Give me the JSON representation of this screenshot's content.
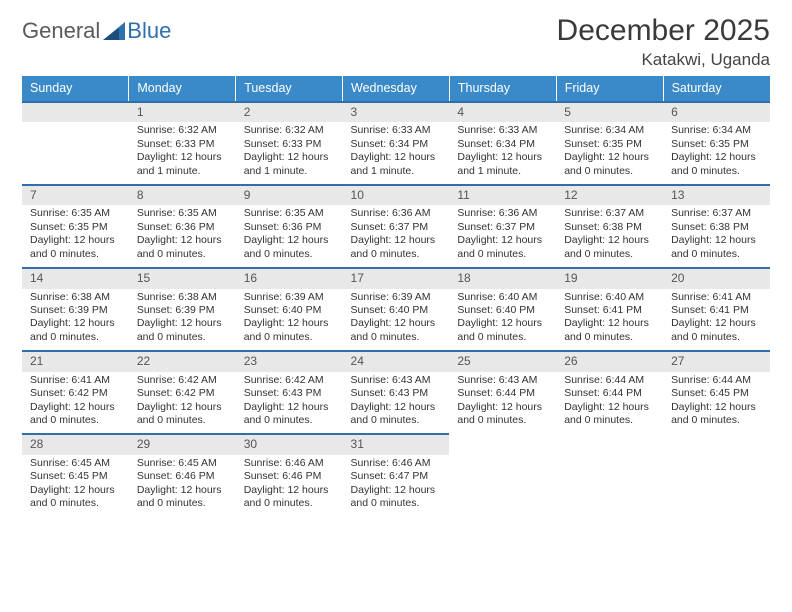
{
  "logo": {
    "part1": "General",
    "part2": "Blue"
  },
  "title": "December 2025",
  "location": "Katakwi, Uganda",
  "weekday_header_bg": "#3a8ac9",
  "accent_line": "#2f6fab",
  "daynum_bg": "#e8e8e8",
  "weekdays": [
    "Sunday",
    "Monday",
    "Tuesday",
    "Wednesday",
    "Thursday",
    "Friday",
    "Saturday"
  ],
  "weeks": [
    [
      null,
      {
        "n": "1",
        "sr": "Sunrise: 6:32 AM",
        "ss": "Sunset: 6:33 PM",
        "d1": "Daylight: 12 hours",
        "d2": "and 1 minute."
      },
      {
        "n": "2",
        "sr": "Sunrise: 6:32 AM",
        "ss": "Sunset: 6:33 PM",
        "d1": "Daylight: 12 hours",
        "d2": "and 1 minute."
      },
      {
        "n": "3",
        "sr": "Sunrise: 6:33 AM",
        "ss": "Sunset: 6:34 PM",
        "d1": "Daylight: 12 hours",
        "d2": "and 1 minute."
      },
      {
        "n": "4",
        "sr": "Sunrise: 6:33 AM",
        "ss": "Sunset: 6:34 PM",
        "d1": "Daylight: 12 hours",
        "d2": "and 1 minute."
      },
      {
        "n": "5",
        "sr": "Sunrise: 6:34 AM",
        "ss": "Sunset: 6:35 PM",
        "d1": "Daylight: 12 hours",
        "d2": "and 0 minutes."
      },
      {
        "n": "6",
        "sr": "Sunrise: 6:34 AM",
        "ss": "Sunset: 6:35 PM",
        "d1": "Daylight: 12 hours",
        "d2": "and 0 minutes."
      }
    ],
    [
      {
        "n": "7",
        "sr": "Sunrise: 6:35 AM",
        "ss": "Sunset: 6:35 PM",
        "d1": "Daylight: 12 hours",
        "d2": "and 0 minutes."
      },
      {
        "n": "8",
        "sr": "Sunrise: 6:35 AM",
        "ss": "Sunset: 6:36 PM",
        "d1": "Daylight: 12 hours",
        "d2": "and 0 minutes."
      },
      {
        "n": "9",
        "sr": "Sunrise: 6:35 AM",
        "ss": "Sunset: 6:36 PM",
        "d1": "Daylight: 12 hours",
        "d2": "and 0 minutes."
      },
      {
        "n": "10",
        "sr": "Sunrise: 6:36 AM",
        "ss": "Sunset: 6:37 PM",
        "d1": "Daylight: 12 hours",
        "d2": "and 0 minutes."
      },
      {
        "n": "11",
        "sr": "Sunrise: 6:36 AM",
        "ss": "Sunset: 6:37 PM",
        "d1": "Daylight: 12 hours",
        "d2": "and 0 minutes."
      },
      {
        "n": "12",
        "sr": "Sunrise: 6:37 AM",
        "ss": "Sunset: 6:38 PM",
        "d1": "Daylight: 12 hours",
        "d2": "and 0 minutes."
      },
      {
        "n": "13",
        "sr": "Sunrise: 6:37 AM",
        "ss": "Sunset: 6:38 PM",
        "d1": "Daylight: 12 hours",
        "d2": "and 0 minutes."
      }
    ],
    [
      {
        "n": "14",
        "sr": "Sunrise: 6:38 AM",
        "ss": "Sunset: 6:39 PM",
        "d1": "Daylight: 12 hours",
        "d2": "and 0 minutes."
      },
      {
        "n": "15",
        "sr": "Sunrise: 6:38 AM",
        "ss": "Sunset: 6:39 PM",
        "d1": "Daylight: 12 hours",
        "d2": "and 0 minutes."
      },
      {
        "n": "16",
        "sr": "Sunrise: 6:39 AM",
        "ss": "Sunset: 6:40 PM",
        "d1": "Daylight: 12 hours",
        "d2": "and 0 minutes."
      },
      {
        "n": "17",
        "sr": "Sunrise: 6:39 AM",
        "ss": "Sunset: 6:40 PM",
        "d1": "Daylight: 12 hours",
        "d2": "and 0 minutes."
      },
      {
        "n": "18",
        "sr": "Sunrise: 6:40 AM",
        "ss": "Sunset: 6:40 PM",
        "d1": "Daylight: 12 hours",
        "d2": "and 0 minutes."
      },
      {
        "n": "19",
        "sr": "Sunrise: 6:40 AM",
        "ss": "Sunset: 6:41 PM",
        "d1": "Daylight: 12 hours",
        "d2": "and 0 minutes."
      },
      {
        "n": "20",
        "sr": "Sunrise: 6:41 AM",
        "ss": "Sunset: 6:41 PM",
        "d1": "Daylight: 12 hours",
        "d2": "and 0 minutes."
      }
    ],
    [
      {
        "n": "21",
        "sr": "Sunrise: 6:41 AM",
        "ss": "Sunset: 6:42 PM",
        "d1": "Daylight: 12 hours",
        "d2": "and 0 minutes."
      },
      {
        "n": "22",
        "sr": "Sunrise: 6:42 AM",
        "ss": "Sunset: 6:42 PM",
        "d1": "Daylight: 12 hours",
        "d2": "and 0 minutes."
      },
      {
        "n": "23",
        "sr": "Sunrise: 6:42 AM",
        "ss": "Sunset: 6:43 PM",
        "d1": "Daylight: 12 hours",
        "d2": "and 0 minutes."
      },
      {
        "n": "24",
        "sr": "Sunrise: 6:43 AM",
        "ss": "Sunset: 6:43 PM",
        "d1": "Daylight: 12 hours",
        "d2": "and 0 minutes."
      },
      {
        "n": "25",
        "sr": "Sunrise: 6:43 AM",
        "ss": "Sunset: 6:44 PM",
        "d1": "Daylight: 12 hours",
        "d2": "and 0 minutes."
      },
      {
        "n": "26",
        "sr": "Sunrise: 6:44 AM",
        "ss": "Sunset: 6:44 PM",
        "d1": "Daylight: 12 hours",
        "d2": "and 0 minutes."
      },
      {
        "n": "27",
        "sr": "Sunrise: 6:44 AM",
        "ss": "Sunset: 6:45 PM",
        "d1": "Daylight: 12 hours",
        "d2": "and 0 minutes."
      }
    ],
    [
      {
        "n": "28",
        "sr": "Sunrise: 6:45 AM",
        "ss": "Sunset: 6:45 PM",
        "d1": "Daylight: 12 hours",
        "d2": "and 0 minutes."
      },
      {
        "n": "29",
        "sr": "Sunrise: 6:45 AM",
        "ss": "Sunset: 6:46 PM",
        "d1": "Daylight: 12 hours",
        "d2": "and 0 minutes."
      },
      {
        "n": "30",
        "sr": "Sunrise: 6:46 AM",
        "ss": "Sunset: 6:46 PM",
        "d1": "Daylight: 12 hours",
        "d2": "and 0 minutes."
      },
      {
        "n": "31",
        "sr": "Sunrise: 6:46 AM",
        "ss": "Sunset: 6:47 PM",
        "d1": "Daylight: 12 hours",
        "d2": "and 0 minutes."
      },
      null,
      null,
      null
    ]
  ]
}
